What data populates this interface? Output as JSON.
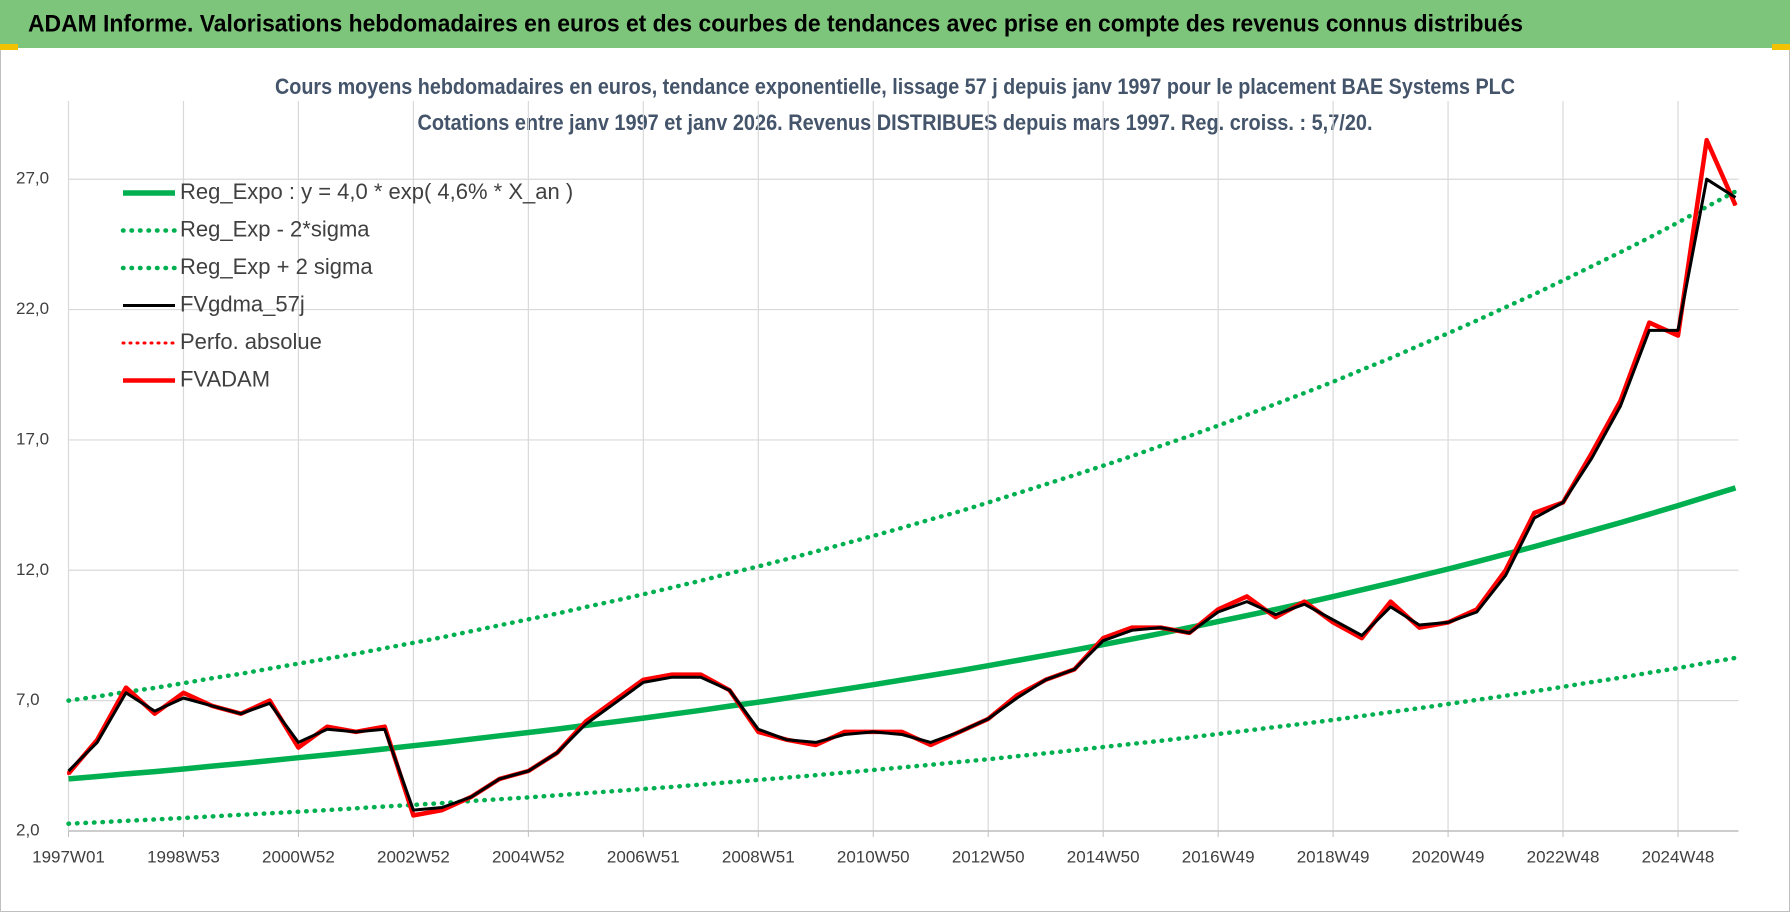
{
  "header": {
    "title": "ADAM Informe. Valorisations hebdomadaires en euros et des courbes de tendances avec prise en compte des revenus connus distribués"
  },
  "chart_data": {
    "type": "line",
    "title": "Cours moyens hebdomadaires en euros, tendance exponentielle, lissage 57 j depuis janv 1997 pour le placement BAE Systems PLC",
    "subtitle": "Cotations entre janv 1997 et janv 2026. Revenus DISTRIBUES depuis mars 1997. Reg. croiss. : 5,7/20.",
    "categories": [
      "1997W01",
      null,
      null,
      null,
      "1998W53",
      null,
      null,
      null,
      "2000W52",
      null,
      null,
      null,
      "2002W52",
      null,
      null,
      null,
      "2004W52",
      null,
      null,
      null,
      "2006W51",
      null,
      null,
      null,
      "2008W51",
      null,
      null,
      null,
      "2010W50",
      null,
      null,
      null,
      "2012W50",
      null,
      null,
      null,
      "2014W50",
      null,
      null,
      null,
      "2016W49",
      null,
      null,
      null,
      "2018W49",
      null,
      null,
      null,
      "2020W49",
      null,
      null,
      null,
      "2022W48",
      null,
      null,
      null,
      "2024W48",
      null,
      null
    ],
    "ylim": [
      2,
      30
    ],
    "yticks": [
      {
        "value": 2,
        "label": "2,0"
      },
      {
        "value": 7,
        "label": "7,0"
      },
      {
        "value": 12,
        "label": "12,0"
      },
      {
        "value": 17,
        "label": "17,0"
      },
      {
        "value": 22,
        "label": "22,0"
      },
      {
        "value": 27,
        "label": "27,0"
      }
    ],
    "grid": true,
    "legend": "upper left",
    "series": [
      {
        "name": "Reg_Expo : y = 4,0 * exp( 4,6% *  X_an )",
        "color": "#00b050",
        "style": "solid",
        "values": [
          4.0,
          4.09,
          4.19,
          4.28,
          4.38,
          4.49,
          4.59,
          4.7,
          4.81,
          4.92,
          5.03,
          5.15,
          5.27,
          5.39,
          5.52,
          5.65,
          5.78,
          5.91,
          6.05,
          6.19,
          6.33,
          6.48,
          6.63,
          6.79,
          6.94,
          7.1,
          7.27,
          7.44,
          7.61,
          7.79,
          7.97,
          8.15,
          8.34,
          8.54,
          8.74,
          8.94,
          9.15,
          9.36,
          9.58,
          9.8,
          10.03,
          10.26,
          10.5,
          10.74,
          10.99,
          11.25,
          11.51,
          11.78,
          12.05,
          12.33,
          12.62,
          12.91,
          13.21,
          13.52,
          13.83,
          14.15,
          14.48,
          14.82,
          15.16
        ]
      },
      {
        "name": "Reg_Exp - 2*sigma",
        "color": "#00b050",
        "style": "dotted",
        "values": [
          2.28,
          2.33,
          2.39,
          2.44,
          2.5,
          2.56,
          2.62,
          2.68,
          2.74,
          2.8,
          2.87,
          2.94,
          3.0,
          3.07,
          3.15,
          3.22,
          3.29,
          3.37,
          3.45,
          3.53,
          3.61,
          3.69,
          3.78,
          3.87,
          3.96,
          4.05,
          4.14,
          4.24,
          4.34,
          4.44,
          4.54,
          4.65,
          4.75,
          4.87,
          4.98,
          5.1,
          5.22,
          5.34,
          5.46,
          5.59,
          5.72,
          5.85,
          5.99,
          6.12,
          6.26,
          6.41,
          6.56,
          6.71,
          6.87,
          7.03,
          7.19,
          7.36,
          7.53,
          7.71,
          7.88,
          8.07,
          8.25,
          8.45,
          8.64
        ]
      },
      {
        "name": "Reg_Exp + 2 sigma",
        "color": "#00b050",
        "style": "dotted",
        "values": [
          7.0,
          7.16,
          7.33,
          7.49,
          7.67,
          7.86,
          8.03,
          8.23,
          8.42,
          8.61,
          8.8,
          9.01,
          9.22,
          9.43,
          9.66,
          9.89,
          10.12,
          10.34,
          10.59,
          10.83,
          11.08,
          11.34,
          11.6,
          11.88,
          12.15,
          12.43,
          12.72,
          13.02,
          13.32,
          13.63,
          13.95,
          14.26,
          14.6,
          14.95,
          15.3,
          15.65,
          16.01,
          16.38,
          16.77,
          17.15,
          17.55,
          17.96,
          18.38,
          18.8,
          19.23,
          19.69,
          20.14,
          20.62,
          21.09,
          21.58,
          22.09,
          22.59,
          23.12,
          23.66,
          24.2,
          24.76,
          25.34,
          25.94,
          26.53
        ]
      },
      {
        "name": "FVgdma_57j",
        "color": "#000000",
        "style": "solid",
        "values": [
          4.3,
          5.4,
          7.3,
          6.6,
          7.1,
          6.8,
          6.5,
          6.9,
          5.4,
          5.9,
          5.8,
          5.9,
          2.8,
          2.9,
          3.3,
          4.0,
          4.3,
          5.0,
          6.1,
          6.9,
          7.7,
          7.9,
          7.9,
          7.4,
          5.9,
          5.5,
          5.4,
          5.7,
          5.8,
          5.7,
          5.4,
          5.8,
          6.3,
          7.1,
          7.8,
          8.2,
          9.3,
          9.7,
          9.8,
          9.6,
          10.4,
          10.8,
          10.3,
          10.7,
          10.1,
          9.5,
          10.6,
          9.9,
          10.0,
          10.4,
          11.8,
          14.0,
          14.6,
          16.3,
          18.3,
          21.2,
          21.2,
          27.0,
          26.3
        ]
      },
      {
        "name": "Perfo. absolue",
        "color": "#ff0000",
        "style": "dotted",
        "values": [
          4.2,
          5.5,
          7.5,
          6.5,
          7.3,
          6.8,
          6.5,
          7.0,
          5.2,
          6.0,
          5.8,
          6.0,
          2.6,
          2.8,
          3.3,
          4.0,
          4.3,
          5.0,
          6.2,
          7.0,
          7.8,
          8.0,
          8.0,
          7.4,
          5.8,
          5.5,
          5.3,
          5.8,
          5.8,
          5.8,
          5.3,
          5.8,
          6.3,
          7.2,
          7.8,
          8.2,
          9.4,
          9.8,
          9.8,
          9.6,
          10.5,
          11.0,
          10.2,
          10.8,
          10.0,
          9.4,
          10.8,
          9.8,
          10.0,
          10.5,
          12.0,
          14.2,
          14.6,
          16.5,
          18.5,
          21.5,
          21.0,
          28.5,
          26.0
        ]
      },
      {
        "name": "FVADAM",
        "color": "#ff0000",
        "style": "solid",
        "values": [
          4.2,
          5.5,
          7.5,
          6.5,
          7.3,
          6.8,
          6.5,
          7.0,
          5.2,
          6.0,
          5.8,
          6.0,
          2.6,
          2.8,
          3.3,
          4.0,
          4.3,
          5.0,
          6.2,
          7.0,
          7.8,
          8.0,
          8.0,
          7.4,
          5.8,
          5.5,
          5.3,
          5.8,
          5.8,
          5.8,
          5.3,
          5.8,
          6.3,
          7.2,
          7.8,
          8.2,
          9.4,
          9.8,
          9.8,
          9.6,
          10.5,
          11.0,
          10.2,
          10.8,
          10.0,
          9.4,
          10.8,
          9.8,
          10.0,
          10.5,
          12.0,
          14.2,
          14.6,
          16.5,
          18.5,
          21.5,
          21.0,
          28.5,
          26.0
        ]
      }
    ]
  }
}
